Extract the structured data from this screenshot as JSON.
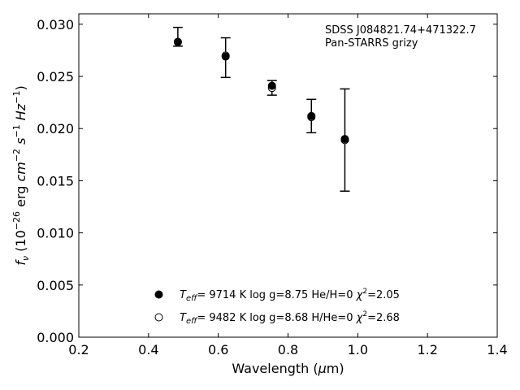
{
  "chart_data": {
    "type": "scatter",
    "xlabel": "Wavelength (μm)",
    "ylabel": "f_ν (10^-26 erg cm^-2 s^-1 Hz^-1)",
    "xlim": [
      0.2,
      1.4
    ],
    "ylim": [
      0.0,
      0.031
    ],
    "x_ticks": [
      0.2,
      0.4,
      0.6,
      0.8,
      1.0,
      1.2,
      1.4
    ],
    "x_tick_labels": [
      "0.2",
      "0.4",
      "0.6",
      "0.8",
      "1.0",
      "1.2",
      "1.4"
    ],
    "y_ticks": [
      0.0,
      0.005,
      0.01,
      0.015,
      0.02,
      0.025,
      0.03
    ],
    "y_tick_labels": [
      "0.000",
      "0.005",
      "0.010",
      "0.015",
      "0.020",
      "0.025",
      "0.030"
    ],
    "grid": false,
    "annotation": {
      "line1": "SDSS J084821.74+471322.7",
      "line2": "Pan-STARRS grizy"
    },
    "observed": {
      "x": [
        0.484,
        0.621,
        0.754,
        0.867,
        0.963
      ],
      "y": [
        0.0288,
        0.0268,
        0.0239,
        0.0212,
        0.0189
      ],
      "err": [
        0.0009,
        0.0019,
        0.0007,
        0.0016,
        0.0049
      ]
    },
    "series": [
      {
        "marker": "filled-circle",
        "legend": {
          "teff_value": "=  9714 K  log g=8.75  He/H=0  ",
          "chi": "=2.05"
        },
        "x": [
          0.484,
          0.621,
          0.754,
          0.867,
          0.963
        ],
        "y": [
          0.0283,
          0.0269,
          0.0241,
          0.0212,
          0.019
        ]
      },
      {
        "marker": "open-circle",
        "legend": {
          "teff_value": "=  9482 K  log g=8.68  H/He=0  ",
          "chi": "=2.68"
        },
        "x": [
          0.484,
          0.621,
          0.754,
          0.867,
          0.963
        ],
        "y": [
          0.0283,
          0.027,
          0.0239,
          0.0211,
          0.0189
        ]
      }
    ],
    "legend_position": "bottom-center"
  }
}
